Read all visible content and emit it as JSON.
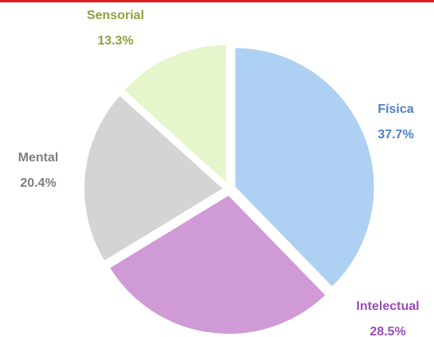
{
  "chart_data": {
    "type": "pie",
    "categories": [
      "Física",
      "Intelectual",
      "Mental",
      "Sensorial"
    ],
    "values": [
      37.7,
      28.5,
      20.4,
      13.3
    ],
    "value_labels": [
      "37.7%",
      "28.5%",
      "20.4%",
      "13.3%"
    ],
    "colors": [
      "#aed0f2",
      "#d09ad6",
      "#d4d4d4",
      "#e7f5cd"
    ],
    "label_colors": [
      "#4f81c4",
      "#9a4db3",
      "#7f7f7f",
      "#8ca23e"
    ]
  }
}
